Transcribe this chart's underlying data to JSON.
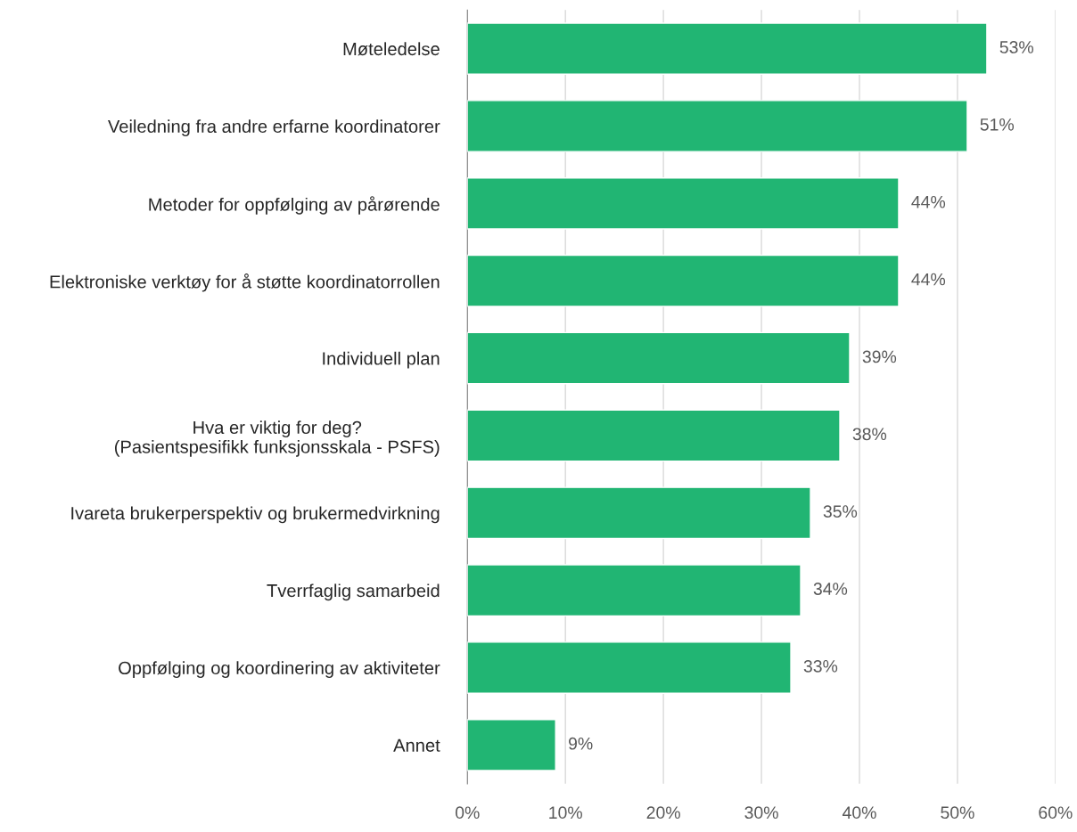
{
  "chart_data": {
    "type": "bar",
    "orientation": "horizontal",
    "categories": [
      "Møteledelse",
      "Veiledning fra andre erfarne koordinatorer",
      "Metoder for oppfølging av pårørende",
      "Elektroniske verktøy for å støtte koordinatorrollen",
      "Individuell plan",
      "Hva er viktig for deg?\n(Pasientspesifikk funksjonsskala - PSFS)",
      "Ivareta brukerperspektiv og brukermedvirkning",
      "Tverrfaglig samarbeid",
      "Oppfølging og koordinering av aktiviteter",
      "Annet"
    ],
    "values": [
      53,
      51,
      44,
      44,
      39,
      38,
      35,
      34,
      33,
      9
    ],
    "value_labels": [
      "53%",
      "51%",
      "44%",
      "44%",
      "39%",
      "38%",
      "35%",
      "34%",
      "33%",
      "9%"
    ],
    "color": "#21b573",
    "xlim": [
      0,
      60
    ],
    "xticks": [
      {
        "value": 0,
        "label": "0%"
      },
      {
        "value": 10,
        "label": "10%"
      },
      {
        "value": 20,
        "label": "20%"
      },
      {
        "value": 30,
        "label": "30%"
      },
      {
        "value": 40,
        "label": "40%"
      },
      {
        "value": 50,
        "label": "50%"
      },
      {
        "value": 60,
        "label": "60%"
      }
    ],
    "grid": "x",
    "legend": false
  }
}
